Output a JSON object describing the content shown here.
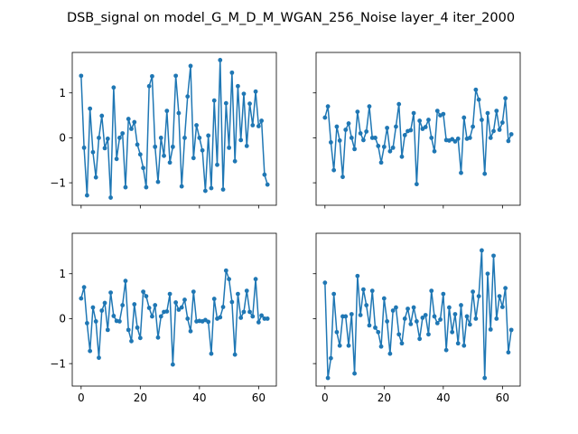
{
  "figure": {
    "title": "DSB_signal on model_G_M_D_M_WGAN_256_Noise layer_4 iter_2000"
  },
  "chart_data": [
    {
      "type": "line",
      "position": "top-left",
      "series_color": "#1f77b4",
      "xlim": [
        -3,
        66
      ],
      "ylim": [
        -1.5,
        1.9
      ],
      "xticks": [
        0,
        20,
        40,
        60
      ],
      "yticks": [
        -1,
        0,
        1
      ],
      "show_xtick_labels": false,
      "show_ytick_labels": true,
      "grid": false,
      "x": [
        0,
        1,
        2,
        3,
        4,
        5,
        6,
        7,
        8,
        9,
        10,
        11,
        12,
        13,
        14,
        15,
        16,
        17,
        18,
        19,
        20,
        21,
        22,
        23,
        24,
        25,
        26,
        27,
        28,
        29,
        30,
        31,
        32,
        33,
        34,
        35,
        36,
        37,
        38,
        39,
        40,
        41,
        42,
        43,
        44,
        45,
        46,
        47,
        48,
        49,
        50,
        51,
        52,
        53,
        54,
        55,
        56,
        57,
        58,
        59,
        60,
        61,
        62,
        63
      ],
      "values": [
        1.38,
        -0.22,
        -1.28,
        0.65,
        -0.32,
        -0.88,
        0.0,
        0.49,
        -0.23,
        -0.02,
        -1.33,
        1.12,
        -0.47,
        0.0,
        0.1,
        -1.1,
        0.42,
        0.2,
        0.35,
        -0.15,
        -0.37,
        -0.67,
        -1.1,
        1.15,
        1.37,
        -0.2,
        -0.98,
        0.0,
        -0.4,
        0.6,
        -0.55,
        -0.2,
        1.38,
        0.55,
        -1.08,
        0.0,
        0.92,
        1.6,
        -0.45,
        0.28,
        0.0,
        -0.28,
        -1.18,
        0.05,
        -1.12,
        0.83,
        -0.6,
        1.73,
        -1.15,
        0.77,
        -0.22,
        1.45,
        -0.52,
        1.15,
        -0.05,
        0.98,
        -0.18,
        0.76,
        0.28,
        1.03,
        0.26,
        0.38,
        -0.82,
        -1.04
      ]
    },
    {
      "type": "line",
      "position": "top-right",
      "series_color": "#1f77b4",
      "xlim": [
        -3,
        66
      ],
      "ylim": [
        -1.5,
        1.9
      ],
      "xticks": [
        0,
        20,
        40,
        60
      ],
      "yticks": [
        -1,
        0,
        1
      ],
      "show_xtick_labels": false,
      "show_ytick_labels": false,
      "grid": false,
      "x": [
        0,
        1,
        2,
        3,
        4,
        5,
        6,
        7,
        8,
        9,
        10,
        11,
        12,
        13,
        14,
        15,
        16,
        17,
        18,
        19,
        20,
        21,
        22,
        23,
        24,
        25,
        26,
        27,
        28,
        29,
        30,
        31,
        32,
        33,
        34,
        35,
        36,
        37,
        38,
        39,
        40,
        41,
        42,
        43,
        44,
        45,
        46,
        47,
        48,
        49,
        50,
        51,
        52,
        53,
        54,
        55,
        56,
        57,
        58,
        59,
        60,
        61,
        62,
        63
      ],
      "values": [
        0.45,
        0.7,
        -0.1,
        -0.72,
        0.25,
        -0.06,
        -0.87,
        0.18,
        0.32,
        0.0,
        -0.25,
        0.58,
        0.1,
        -0.05,
        0.14,
        0.7,
        0.0,
        0.0,
        -0.18,
        -0.55,
        -0.2,
        0.22,
        -0.3,
        -0.22,
        0.25,
        0.75,
        -0.42,
        0.06,
        0.15,
        0.17,
        0.55,
        -1.03,
        0.38,
        0.2,
        0.24,
        0.4,
        0.0,
        -0.3,
        0.6,
        0.5,
        0.53,
        -0.05,
        -0.06,
        -0.03,
        -0.08,
        -0.02,
        -0.78,
        0.45,
        -0.02,
        0.0,
        0.25,
        1.07,
        0.85,
        0.4,
        -0.8,
        0.55,
        0.0,
        0.15,
        0.6,
        0.18,
        0.34,
        0.88,
        -0.07,
        0.08
      ]
    },
    {
      "type": "line",
      "position": "bottom-left",
      "series_color": "#1f77b4",
      "xlim": [
        -3,
        66
      ],
      "ylim": [
        -1.5,
        1.9
      ],
      "xticks": [
        0,
        20,
        40,
        60
      ],
      "yticks": [
        -1,
        0,
        1
      ],
      "show_xtick_labels": true,
      "show_ytick_labels": true,
      "grid": false,
      "x": [
        0,
        1,
        2,
        3,
        4,
        5,
        6,
        7,
        8,
        9,
        10,
        11,
        12,
        13,
        14,
        15,
        16,
        17,
        18,
        19,
        20,
        21,
        22,
        23,
        24,
        25,
        26,
        27,
        28,
        29,
        30,
        31,
        32,
        33,
        34,
        35,
        36,
        37,
        38,
        39,
        40,
        41,
        42,
        43,
        44,
        45,
        46,
        47,
        48,
        49,
        50,
        51,
        52,
        53,
        54,
        55,
        56,
        57,
        58,
        59,
        60,
        61,
        62,
        63
      ],
      "values": [
        0.45,
        0.7,
        -0.1,
        -0.72,
        0.25,
        -0.06,
        -0.87,
        0.18,
        0.35,
        -0.25,
        0.58,
        0.06,
        -0.05,
        -0.06,
        0.3,
        0.84,
        -0.25,
        -0.5,
        0.32,
        -0.2,
        -0.43,
        0.6,
        0.5,
        0.24,
        0.05,
        0.3,
        -0.42,
        0.05,
        0.15,
        0.16,
        0.55,
        -1.02,
        0.36,
        0.2,
        0.25,
        0.42,
        0.0,
        -0.28,
        0.6,
        -0.06,
        -0.05,
        -0.06,
        -0.03,
        -0.07,
        -0.78,
        0.44,
        0.0,
        0.03,
        0.26,
        1.07,
        0.88,
        0.37,
        -0.8,
        0.55,
        0.02,
        0.15,
        0.62,
        0.15,
        0.05,
        0.88,
        -0.08,
        0.07,
        0.0,
        0.0
      ]
    },
    {
      "type": "line",
      "position": "bottom-right",
      "series_color": "#1f77b4",
      "xlim": [
        -3,
        66
      ],
      "ylim": [
        -1.5,
        1.9
      ],
      "xticks": [
        0,
        20,
        40,
        60
      ],
      "yticks": [
        -1,
        0,
        1
      ],
      "show_xtick_labels": true,
      "show_ytick_labels": false,
      "grid": false,
      "x": [
        0,
        1,
        2,
        3,
        4,
        5,
        6,
        7,
        8,
        9,
        10,
        11,
        12,
        13,
        14,
        15,
        16,
        17,
        18,
        19,
        20,
        21,
        22,
        23,
        24,
        25,
        26,
        27,
        28,
        29,
        30,
        31,
        32,
        33,
        34,
        35,
        36,
        37,
        38,
        39,
        40,
        41,
        42,
        43,
        44,
        45,
        46,
        47,
        48,
        49,
        50,
        51,
        52,
        53,
        54,
        55,
        56,
        57,
        58,
        59,
        60,
        61,
        62,
        63
      ],
      "values": [
        0.8,
        -1.32,
        -0.88,
        0.55,
        -0.3,
        -0.6,
        0.05,
        0.05,
        -0.6,
        0.1,
        -1.22,
        0.95,
        0.08,
        0.65,
        0.3,
        -0.15,
        0.62,
        -0.2,
        -0.3,
        -0.62,
        0.45,
        -0.06,
        -0.78,
        0.18,
        0.25,
        -0.35,
        -0.55,
        0.0,
        0.22,
        -0.12,
        0.25,
        -0.06,
        -0.45,
        0.02,
        0.08,
        -0.35,
        0.62,
        0.05,
        -0.1,
        -0.02,
        0.55,
        -0.7,
        0.25,
        -0.3,
        0.1,
        -0.55,
        0.3,
        -0.6,
        0.05,
        -0.13,
        0.6,
        0.0,
        0.5,
        1.52,
        -1.32,
        1.0,
        -0.24,
        1.4,
        0.0,
        0.5,
        0.26,
        0.68,
        -0.75,
        -0.25
      ]
    }
  ]
}
